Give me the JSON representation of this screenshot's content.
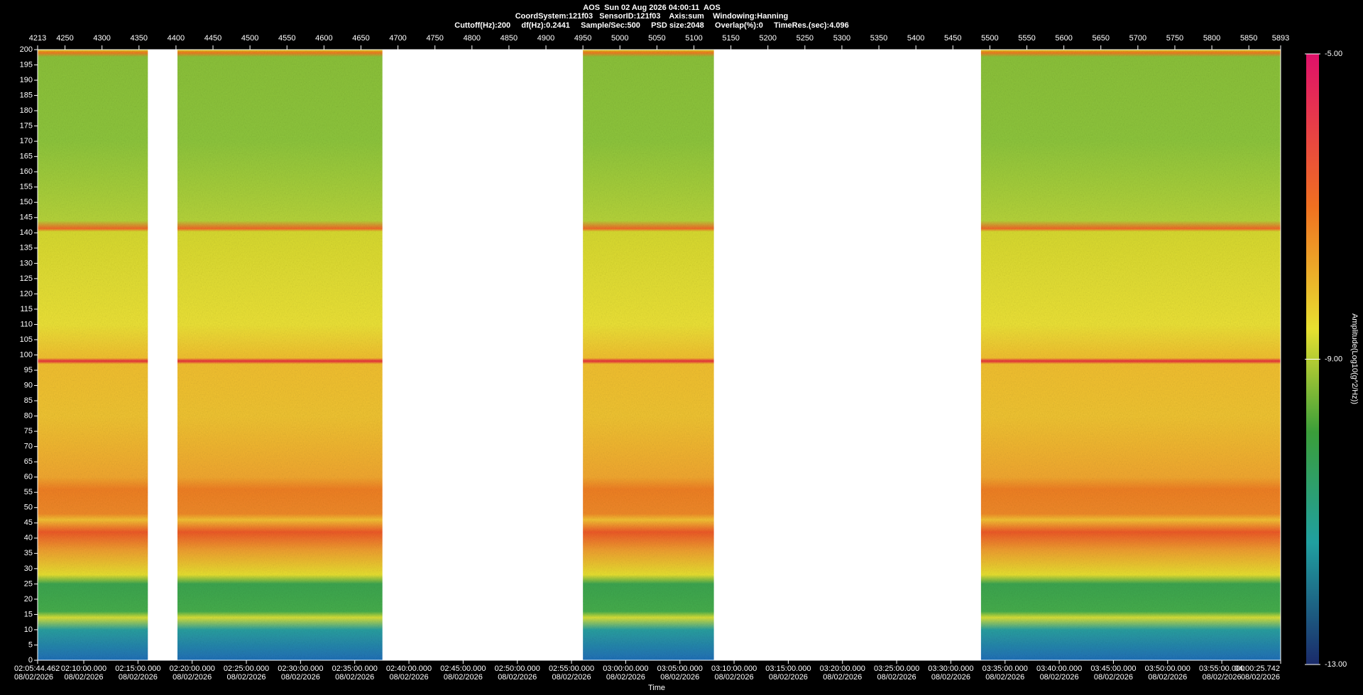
{
  "chart_data": {
    "type": "spectrogram",
    "title": "AOS  Sun 02 Aug 2026 04:00:11  AOS",
    "subtitle": "CoordSystem:121f03   SensorID:121f03    Axis:sum    Windowing:Hanning",
    "settings_line": "Cuttoff(Hz):200     df(Hz):0.2441     Sample/Sec:500     PSD size:2048     Overlap(%):0     TimeRes.(sec):4.096",
    "xlabel": "Time",
    "colorbar_label": "Amplitude(Log10(g^2/Hz))",
    "xlim": [
      4213,
      5893
    ],
    "xticks": [
      4213,
      4250,
      4300,
      4350,
      4400,
      4450,
      4500,
      4550,
      4600,
      4650,
      4700,
      4750,
      4800,
      4850,
      4900,
      4950,
      5000,
      5050,
      5100,
      5150,
      5200,
      5250,
      5300,
      5350,
      5400,
      5450,
      5500,
      5550,
      5600,
      5650,
      5700,
      5750,
      5800,
      5850,
      5893
    ],
    "ylim": [
      0,
      200
    ],
    "yticks": [
      0,
      5,
      10,
      15,
      20,
      25,
      30,
      35,
      40,
      45,
      50,
      55,
      60,
      65,
      70,
      75,
      80,
      85,
      90,
      95,
      100,
      105,
      110,
      115,
      120,
      125,
      130,
      135,
      140,
      145,
      150,
      155,
      160,
      165,
      170,
      175,
      180,
      185,
      190,
      195,
      200
    ],
    "x2lim": [
      7544.462,
      14425.742
    ],
    "x2ticks": [
      {
        "value": 7544.462,
        "label": "02:05:44.462",
        "date": "08/02/2026"
      },
      {
        "value": 7800,
        "label": "02:10:00.000",
        "date": "08/02/2026"
      },
      {
        "value": 8100,
        "label": "02:15:00.000",
        "date": "08/02/2026"
      },
      {
        "value": 8400,
        "label": "02:20:00.000",
        "date": "08/02/2026"
      },
      {
        "value": 8700,
        "label": "02:25:00.000",
        "date": "08/02/2026"
      },
      {
        "value": 9000,
        "label": "02:30:00.000",
        "date": "08/02/2026"
      },
      {
        "value": 9300,
        "label": "02:35:00.000",
        "date": "08/02/2026"
      },
      {
        "value": 9600,
        "label": "02:40:00.000",
        "date": "08/02/2026"
      },
      {
        "value": 9900,
        "label": "02:45:00.000",
        "date": "08/02/2026"
      },
      {
        "value": 10200,
        "label": "02:50:00.000",
        "date": "08/02/2026"
      },
      {
        "value": 10500,
        "label": "02:55:00.000",
        "date": "08/02/2026"
      },
      {
        "value": 10800,
        "label": "03:00:00.000",
        "date": "08/02/2026"
      },
      {
        "value": 11100,
        "label": "03:05:00.000",
        "date": "08/02/2026"
      },
      {
        "value": 11400,
        "label": "03:10:00.000",
        "date": "08/02/2026"
      },
      {
        "value": 11700,
        "label": "03:15:00.000",
        "date": "08/02/2026"
      },
      {
        "value": 12000,
        "label": "03:20:00.000",
        "date": "08/02/2026"
      },
      {
        "value": 12300,
        "label": "03:25:00.000",
        "date": "08/02/2026"
      },
      {
        "value": 12600,
        "label": "03:30:00.000",
        "date": "08/02/2026"
      },
      {
        "value": 12900,
        "label": "03:35:00.000",
        "date": "08/02/2026"
      },
      {
        "value": 13200,
        "label": "03:40:00.000",
        "date": "08/02/2026"
      },
      {
        "value": 13500,
        "label": "03:45:00.000",
        "date": "08/02/2026"
      },
      {
        "value": 13800,
        "label": "03:50:00.000",
        "date": "08/02/2026"
      },
      {
        "value": 14100,
        "label": "03:55:00.000",
        "date": "08/02/2026"
      },
      {
        "value": 14425.742,
        "label": "04:00:25.742",
        "date": "08/02/2026"
      }
    ],
    "segments": [
      {
        "start": 4213,
        "end": 4362
      },
      {
        "start": 4402,
        "end": 4679
      },
      {
        "start": 4950,
        "end": 5127
      },
      {
        "start": 5488,
        "end": 5893
      }
    ],
    "clim": [
      -13,
      -5
    ],
    "cticks": [
      {
        "value": -5,
        "label": "-5.00"
      },
      {
        "value": -9,
        "label": "-9.00"
      },
      {
        "value": -13,
        "label": "-13.00"
      }
    ]
  }
}
